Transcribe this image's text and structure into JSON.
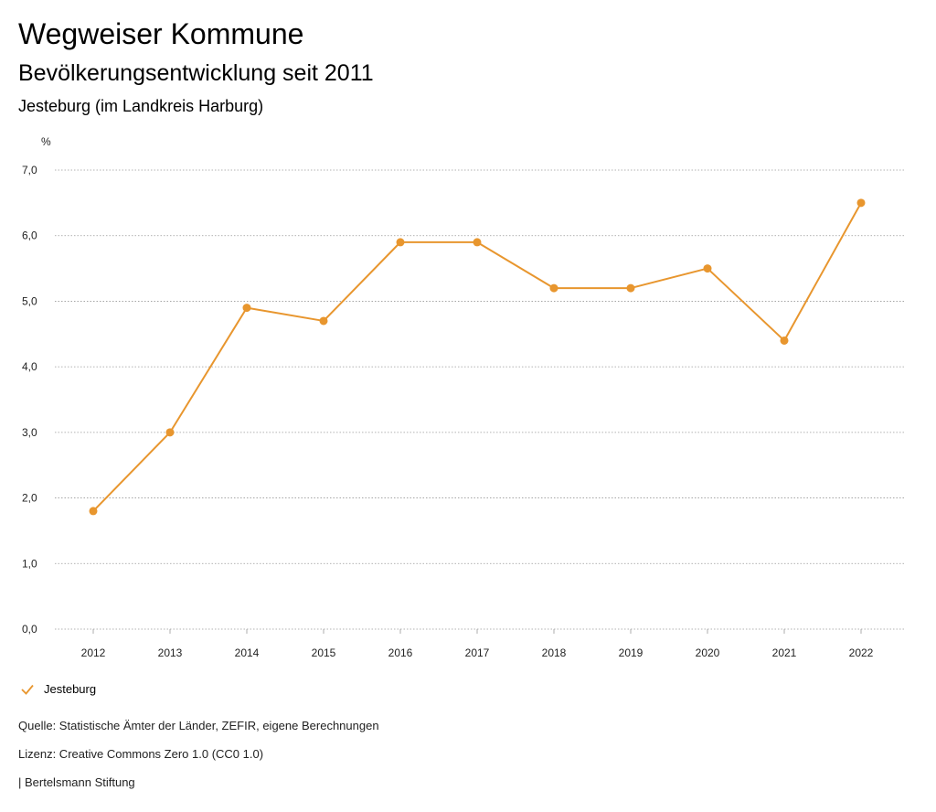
{
  "header": {
    "title": "Wegweiser Kommune",
    "subtitle": "Bevölkerungsentwicklung seit 2011",
    "region": "Jesteburg (im Landkreis Harburg)"
  },
  "colors": {
    "series": "#e8962e",
    "grid": "#999999"
  },
  "chart_data": {
    "type": "line",
    "title": "Bevölkerungsentwicklung seit 2011",
    "ylabel": "%",
    "xlabel": "",
    "categories": [
      "2012",
      "2013",
      "2014",
      "2015",
      "2016",
      "2017",
      "2018",
      "2019",
      "2020",
      "2021",
      "2022"
    ],
    "series": [
      {
        "name": "Jesteburg",
        "values": [
          1.8,
          3.0,
          4.9,
          4.7,
          5.9,
          5.9,
          5.2,
          5.2,
          5.5,
          4.4,
          6.5
        ]
      }
    ],
    "ylim": [
      0,
      7
    ],
    "yticks": [
      "0,0",
      "1,0",
      "2,0",
      "3,0",
      "4,0",
      "5,0",
      "6,0",
      "7,0"
    ],
    "grid": true,
    "legend": "bottom-left"
  },
  "footer": {
    "source": "Quelle: Statistische Ämter der Länder, ZEFIR, eigene Berechnungen",
    "license": "Lizenz: Creative Commons Zero 1.0 (CC0 1.0)",
    "publisher": "| Bertelsmann Stiftung"
  }
}
